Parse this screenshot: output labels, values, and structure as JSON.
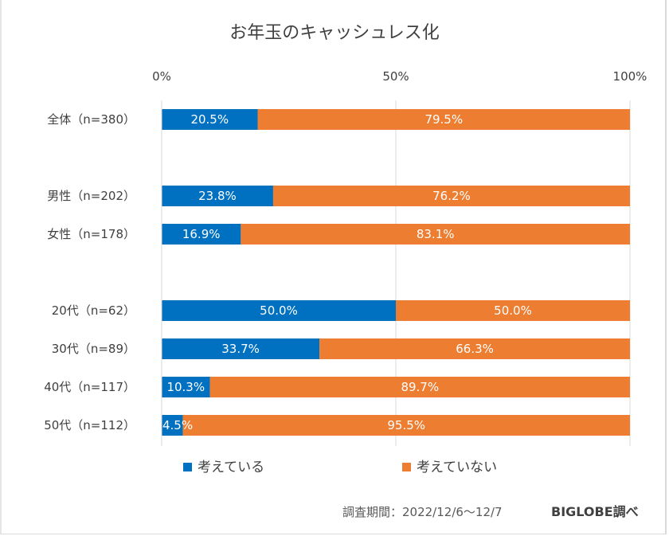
{
  "chart_data": {
    "type": "bar",
    "orientation": "horizontal",
    "stacked": "percent",
    "title": "お年玉のキャッシュレス化",
    "xlabel": "",
    "ylabel": "",
    "xlim": [
      0,
      100
    ],
    "x_ticks": [
      "0%",
      "50%",
      "100%"
    ],
    "grid": true,
    "legend_position": "bottom",
    "categories": [
      "全体（n=380）",
      "",
      "男性（n=202）",
      "女性（n=178）",
      "",
      "20代（n=62）",
      "30代（n=89）",
      "40代（n=117）",
      "50代（n=112）"
    ],
    "series": [
      {
        "name": "考えている",
        "color": "#0070c0",
        "values": [
          20.5,
          null,
          23.8,
          16.9,
          null,
          50.0,
          33.7,
          10.3,
          4.5
        ],
        "labels": [
          "20.5%",
          "",
          "23.8%",
          "16.9%",
          "",
          "50.0%",
          "33.7%",
          "10.3%",
          "4.5%"
        ]
      },
      {
        "name": "考えていない",
        "color": "#ed7d31",
        "values": [
          79.5,
          null,
          76.2,
          83.1,
          null,
          50.0,
          66.3,
          89.7,
          95.5
        ],
        "labels": [
          "79.5%",
          "",
          "76.2%",
          "83.1%",
          "",
          "50.0%",
          "66.3%",
          "89.7%",
          "95.5%"
        ]
      }
    ],
    "annotations": {
      "survey_period": "調査期間：2022/12/6～12/7",
      "source": "BIGLOBE調べ"
    }
  }
}
